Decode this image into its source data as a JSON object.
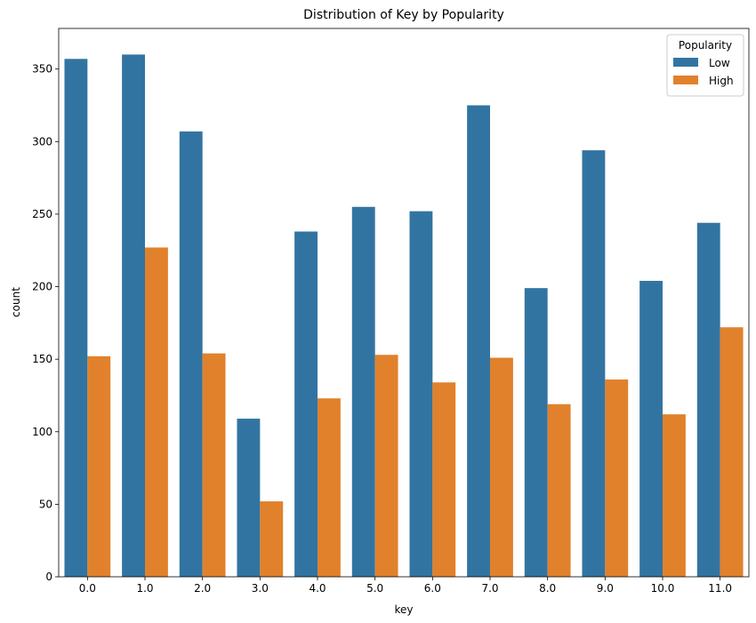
{
  "chart_data": {
    "type": "bar",
    "title": "Distribution of Key by Popularity",
    "xlabel": "key",
    "ylabel": "count",
    "categories": [
      "0.0",
      "1.0",
      "2.0",
      "3.0",
      "4.0",
      "5.0",
      "6.0",
      "7.0",
      "8.0",
      "9.0",
      "10.0",
      "11.0"
    ],
    "series": [
      {
        "name": "Low",
        "color": "#3274a1",
        "values": [
          357,
          360,
          307,
          109,
          238,
          255,
          252,
          325,
          199,
          294,
          204,
          244
        ]
      },
      {
        "name": "High",
        "color": "#e1812c",
        "values": [
          152,
          227,
          154,
          52,
          123,
          153,
          134,
          151,
          119,
          136,
          112,
          172
        ]
      }
    ],
    "ylim": [
      0,
      378
    ],
    "yticks": [
      0,
      50,
      100,
      150,
      200,
      250,
      300,
      350
    ],
    "grid": false,
    "legend": {
      "title": "Popularity",
      "placement": "top-right"
    }
  }
}
